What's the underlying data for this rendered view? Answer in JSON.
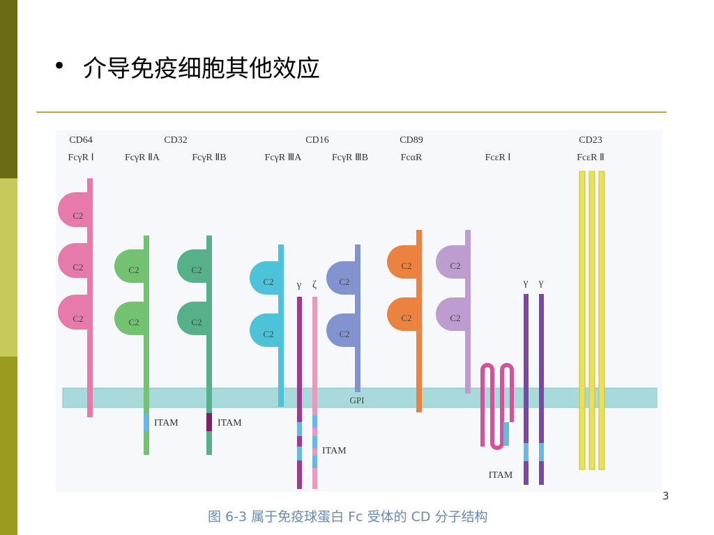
{
  "slide": {
    "bullet": "•",
    "title": "介导免疫细胞其他效应",
    "page_number": "3"
  },
  "figure": {
    "caption": "图 6-3   属于免疫球蛋白 Fc 受体的 CD 分子结构",
    "receptors": [
      {
        "cd": "CD64",
        "name": "FcγR Ⅰ"
      },
      {
        "cd": "CD32",
        "name": "FcγR ⅡA"
      },
      {
        "cd": "",
        "name": "FcγR ⅡB"
      },
      {
        "cd": "CD16",
        "name": "FcγR ⅢA"
      },
      {
        "cd": "",
        "name": "FcγR ⅢB"
      },
      {
        "cd": "CD89",
        "name": "FcαR"
      },
      {
        "cd": "",
        "name": "FcεR Ⅰ"
      },
      {
        "cd": "CD23",
        "name": "FcεR Ⅱ"
      }
    ],
    "domain_label": "C2",
    "membrane_label": "GPI",
    "motif_label": "ITAM",
    "gamma": "γ",
    "zeta": "ζ",
    "colors": {
      "membrane": "#a9dadb",
      "cd64": "#e57aab",
      "cd32a": "#72c271",
      "cd32b": "#56b188",
      "cd16a": "#4cc3d8",
      "cd16b": "#8294cf",
      "cd89": "#ec8240",
      "fceri": "#bd9dcf",
      "cd23": "#e8e05a",
      "gamma_chain": "#9b3c8c",
      "zeta_chain": "#e79ab9",
      "fceri_beta": "#d6509a",
      "fceri_gamma": "#7b49a4",
      "itam_blue": "#6ab8e2",
      "itam_dark": "#7a1f68"
    }
  }
}
